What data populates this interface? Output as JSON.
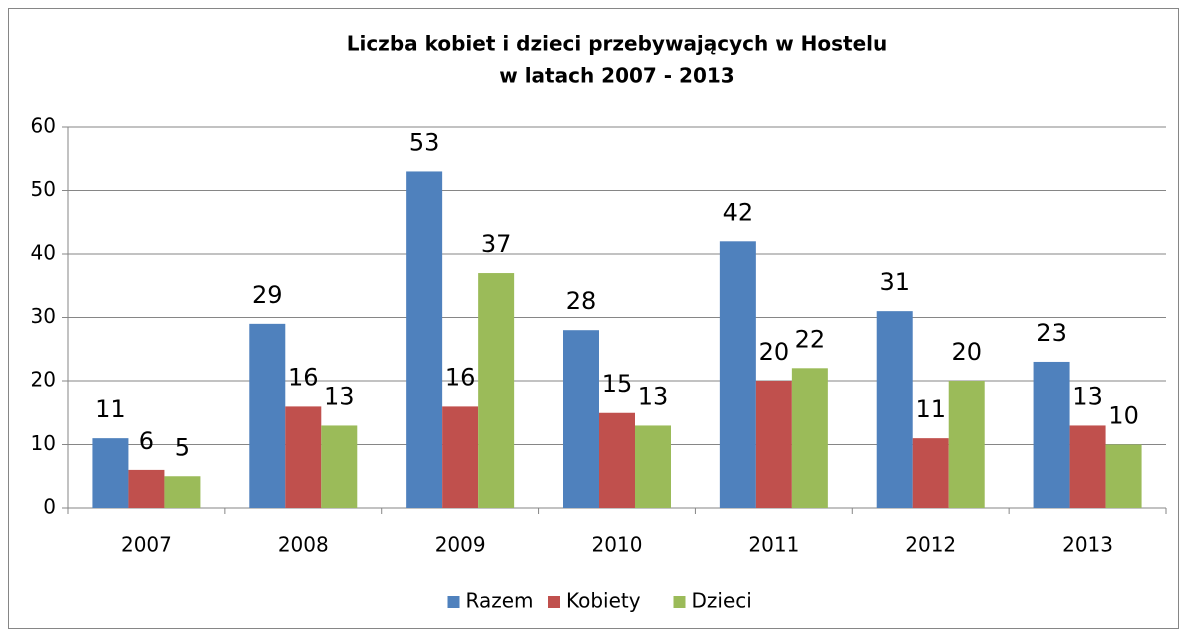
{
  "chart_data": {
    "type": "bar",
    "title": [
      "Liczba  kobiet i dzieci przebywających w Hostelu",
      "w latach 2007 - 2013"
    ],
    "categories": [
      "2007",
      "2008",
      "2009",
      "2010",
      "2011",
      "2012",
      "2013"
    ],
    "series": [
      {
        "name": "Razem",
        "color": "#4f81bd",
        "values": [
          11,
          29,
          53,
          28,
          42,
          31,
          23
        ]
      },
      {
        "name": "Kobiety",
        "color": "#c0504d",
        "values": [
          6,
          16,
          16,
          15,
          20,
          11,
          13
        ]
      },
      {
        "name": "Dzieci",
        "color": "#9bbb59",
        "values": [
          5,
          13,
          37,
          13,
          22,
          20,
          10
        ]
      }
    ],
    "ylim": [
      0,
      60
    ],
    "yticks": [
      0,
      10,
      20,
      30,
      40,
      50,
      60
    ],
    "grid": true,
    "legend": "bottom"
  }
}
